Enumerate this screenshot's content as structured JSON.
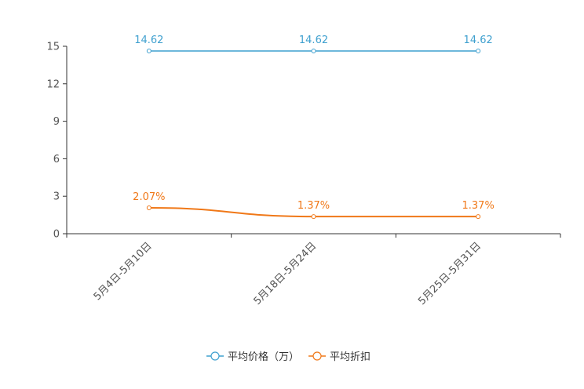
{
  "chart_data": {
    "type": "line",
    "title": "",
    "xlabel": "",
    "ylabel": "",
    "categories": [
      "5月4日-5月10日",
      "5月18日-5月24日",
      "5月25日-5月31日"
    ],
    "ylim": [
      0,
      15
    ],
    "yticks": [
      0,
      3,
      6,
      9,
      12,
      15
    ],
    "ytick_labels": [
      "0",
      "3",
      "6",
      "9",
      "12",
      "15"
    ],
    "grid": false,
    "legend_position": "bottom-center",
    "series": [
      {
        "name": "平均价格（万）",
        "color": "#3fa0cf",
        "values": [
          14.62,
          14.62,
          14.62
        ],
        "labels": [
          "14.62",
          "14.62",
          "14.62"
        ]
      },
      {
        "name": "平均折扣",
        "color": "#f07818",
        "values": [
          2.07,
          1.37,
          1.37
        ],
        "labels": [
          "2.07%",
          "1.37%",
          "1.37%"
        ]
      }
    ]
  }
}
